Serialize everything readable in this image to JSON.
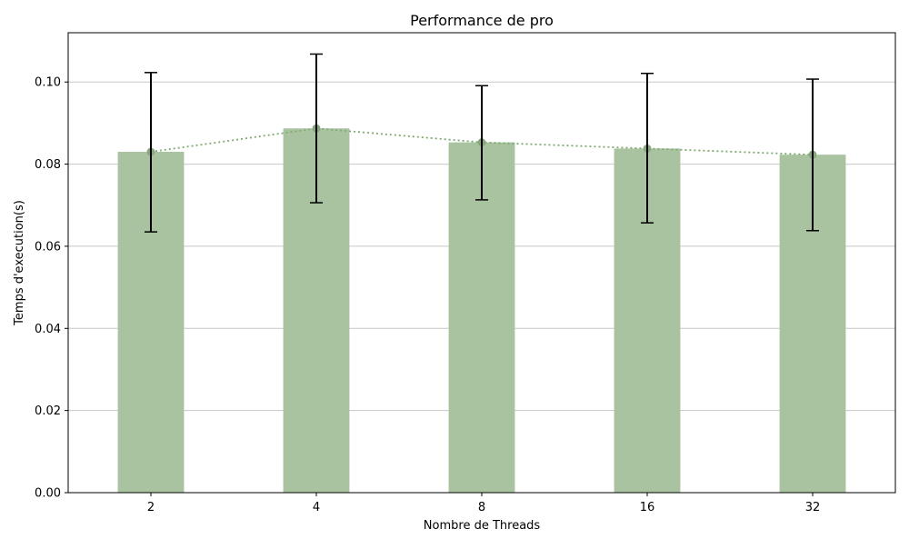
{
  "chart_data": {
    "type": "bar",
    "title": "Performance de pro",
    "xlabel": "Nombre de Threads",
    "ylabel": "Temps d'execution(s)",
    "categories": [
      "2",
      "4",
      "8",
      "16",
      "32"
    ],
    "values": [
      0.083,
      0.0887,
      0.0853,
      0.0838,
      0.0823
    ],
    "error_lower": [
      0.0635,
      0.0706,
      0.0713,
      0.0657,
      0.0638
    ],
    "error_upper": [
      0.1023,
      0.1068,
      0.0991,
      0.1021,
      0.1007
    ],
    "overlay_line": {
      "style": "dotted",
      "markers": "circle",
      "values": [
        0.083,
        0.0887,
        0.0853,
        0.0838,
        0.0823
      ]
    },
    "ylim": [
      0,
      0.112
    ],
    "yticks": [
      "0.00",
      "0.02",
      "0.04",
      "0.06",
      "0.08",
      "0.10"
    ],
    "ytick_values": [
      0,
      0.02,
      0.04,
      0.06,
      0.08,
      0.1
    ],
    "grid": "horizontal",
    "colors": {
      "bar": "#a9c3a0",
      "line": "#7faa72",
      "marker": "#8aa880",
      "error": "#000000",
      "grid": "#c8c8c8"
    }
  }
}
